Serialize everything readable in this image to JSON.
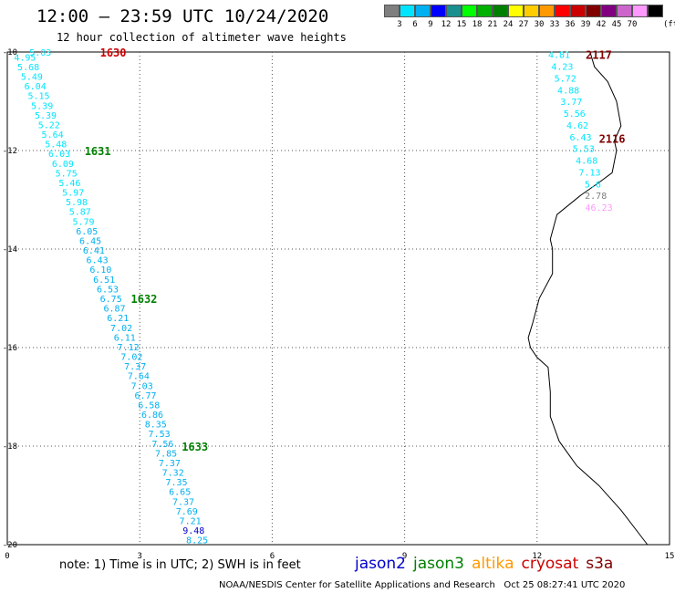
{
  "title": "12:00 – 23:59 UTC 10/24/2020",
  "subtitle": "12 hour collection of altimeter wave heights",
  "colorbar": {
    "colors": [
      "#7f7f7f",
      "#00e5ff",
      "#00b0f0",
      "#0000ff",
      "#1a8f8f",
      "#00ff00",
      "#00b000",
      "#008000",
      "#ffff00",
      "#ffcc00",
      "#ff9900",
      "#ff0000",
      "#cc0000",
      "#800000",
      "#800080",
      "#cc66cc",
      "#ff99ff",
      "#000000"
    ],
    "labels": [
      "3",
      "6",
      "9",
      "12",
      "15",
      "18",
      "21",
      "24",
      "27",
      "30",
      "33",
      "36",
      "39",
      "42",
      "45",
      "70"
    ],
    "unit": "(ft)"
  },
  "axes": {
    "x_ticks": [
      "0",
      "3",
      "6",
      "9",
      "12",
      "15"
    ],
    "y_ticks": [
      "-10",
      "-12",
      "-14",
      "-16",
      "-18",
      "-20"
    ]
  },
  "passes": [
    {
      "label": "1630",
      "color": "#cc0000",
      "lon": 2.1,
      "lat": -10.0
    },
    {
      "label": "1631",
      "color": "#008000",
      "lon": 1.75,
      "lat": -12.0
    },
    {
      "label": "1632",
      "color": "#008000",
      "lon": 2.8,
      "lat": -15.0
    },
    {
      "label": "1633",
      "color": "#008000",
      "lon": 3.95,
      "lat": -18.0
    },
    {
      "label": "2117",
      "color": "#800000",
      "lon": 13.1,
      "lat": -10.05
    },
    {
      "label": "2116",
      "color": "#800000",
      "lon": 13.4,
      "lat": -11.75
    }
  ],
  "track_west": {
    "values": [
      "4.95",
      "5.68",
      "5.49",
      "6.04",
      "5.15",
      "5.39",
      "5.39",
      "5.22",
      "5.64",
      "5.48",
      "6.03",
      "6.09",
      "5.75",
      "5.46",
      "5.97",
      "5.98",
      "5.87",
      "5.79",
      "6.05",
      "6.45",
      "6.41",
      "6.43",
      "6.10",
      "6.51",
      "6.53",
      "6.75",
      "6.87",
      "6.21",
      "7.02",
      "6.11",
      "7.12",
      "7.02",
      "7.37",
      "7.64",
      "7.03",
      "6.77",
      "6.58",
      "6.86",
      "8.35",
      "7.53",
      "7.56",
      "7.85",
      "7.37",
      "7.32",
      "7.35",
      "6.65",
      "7.37",
      "7.69",
      "7.21",
      "9.48",
      "8.25"
    ],
    "colors": [
      "#00e5ff",
      "#00e5ff",
      "#00e5ff",
      "#00e5ff",
      "#00e5ff",
      "#00e5ff",
      "#00e5ff",
      "#00e5ff",
      "#00e5ff",
      "#00e5ff",
      "#00e5ff",
      "#00e5ff",
      "#00e5ff",
      "#00e5ff",
      "#00e5ff",
      "#00e5ff",
      "#00e5ff",
      "#00e5ff",
      "#00b0f0",
      "#00b0f0",
      "#00b0f0",
      "#00b0f0",
      "#00b0f0",
      "#00b0f0",
      "#00b0f0",
      "#00b0f0",
      "#00b0f0",
      "#00b0f0",
      "#00b0f0",
      "#00b0f0",
      "#00b0f0",
      "#00b0f0",
      "#00b0f0",
      "#00b0f0",
      "#00b0f0",
      "#00b0f0",
      "#00b0f0",
      "#00b0f0",
      "#00b0f0",
      "#00b0f0",
      "#00b0f0",
      "#00b0f0",
      "#00b0f0",
      "#00b0f0",
      "#00b0f0",
      "#00b0f0",
      "#00b0f0",
      "#00b0f0",
      "#00b0f0",
      "#0000cc",
      "#00b0f0"
    ],
    "lon_start": 0.4,
    "lat_start": -10.1,
    "lon_end": 4.3,
    "lat_end": -19.9,
    "overlap_label": "5.03"
  },
  "track_east": {
    "values": [
      "4.81",
      "4.23",
      "5.72",
      "4.88",
      "3.77",
      "5.56",
      "4.62",
      "6.43",
      "5.53",
      "4.68",
      "7.13",
      "5.6",
      "2.78",
      "46.23"
    ],
    "colors": [
      "#00e5ff",
      "#00e5ff",
      "#00e5ff",
      "#00e5ff",
      "#00e5ff",
      "#00e5ff",
      "#00e5ff",
      "#00e5ff",
      "#00e5ff",
      "#00e5ff",
      "#00e5ff",
      "#00e5ff",
      "#7f7f7f",
      "#ff99ff"
    ],
    "lon_start": 12.5,
    "lat_start": -10.05,
    "lon_end": 13.4,
    "lat_end": -13.15
  },
  "note": "note: 1) Time is in UTC; 2) SWH is in feet",
  "legend": [
    {
      "name": "jason2",
      "color": "#0000cc"
    },
    {
      "name": "jason3",
      "color": "#008000"
    },
    {
      "name": "altika",
      "color": "#ff9900"
    },
    {
      "name": "cryosat",
      "color": "#cc0000"
    },
    {
      "name": "s3a",
      "color": "#800000"
    }
  ],
  "credit": "NOAA/NESDIS Center for Satellite Applications and Research   Oct 25 08:27:41 UTC 2020"
}
